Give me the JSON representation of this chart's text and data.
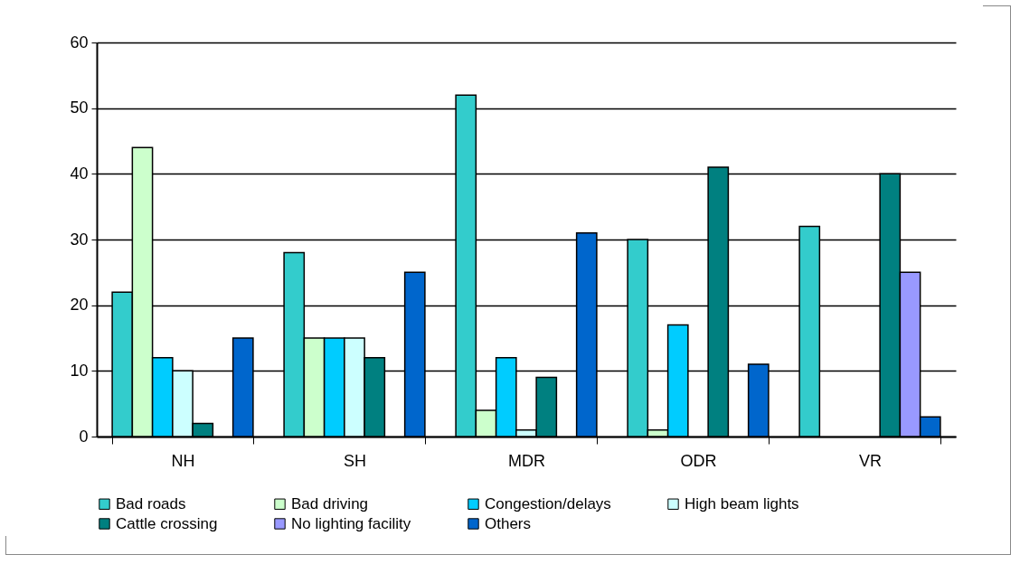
{
  "chart_data": {
    "type": "bar",
    "categories": [
      "NH",
      "SH",
      "MDR",
      "ODR",
      "VR"
    ],
    "series": [
      {
        "name": "Bad roads",
        "color": "#33cccc",
        "values": [
          22,
          28,
          52,
          30,
          32
        ]
      },
      {
        "name": "Bad driving",
        "color": "#ccffcc",
        "values": [
          44,
          15,
          4,
          1,
          0
        ]
      },
      {
        "name": "Congestion/delays",
        "color": "#00ccff",
        "values": [
          12,
          15,
          12,
          17,
          0
        ]
      },
      {
        "name": "High beam lights",
        "color": "#ccffff",
        "values": [
          10,
          15,
          1,
          0,
          0
        ]
      },
      {
        "name": "Cattle crossing",
        "color": "#008080",
        "values": [
          2,
          12,
          9,
          41,
          40
        ]
      },
      {
        "name": "No lighting facility",
        "color": "#9999ff",
        "values": [
          0,
          0,
          0,
          0,
          25
        ]
      },
      {
        "name": "Others",
        "color": "#0066cc",
        "values": [
          15,
          25,
          31,
          11,
          3
        ]
      }
    ],
    "ylim": [
      0,
      60
    ],
    "yticks": [
      0,
      10,
      20,
      30,
      40,
      50,
      60
    ],
    "grid": "y",
    "legend": "bottom"
  }
}
